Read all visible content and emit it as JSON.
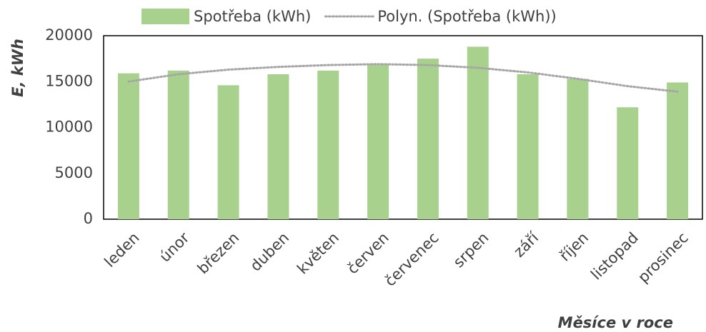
{
  "chart_data": {
    "type": "bar",
    "ylabel": "E, kWh",
    "xlabel": "Měsíce v roce",
    "categories": [
      "leden",
      "únor",
      "březen",
      "duben",
      "květen",
      "červen",
      "červenec",
      "srpen",
      "září",
      "říjen",
      "listopad",
      "prosinec"
    ],
    "series": [
      {
        "name": "Spotřeba (kWh)",
        "type": "bar",
        "color": "#a9d18e",
        "values": [
          15900,
          16200,
          14600,
          15800,
          16200,
          16800,
          17500,
          18800,
          15800,
          15300,
          12200,
          14900
        ]
      },
      {
        "name": "Polyn. (Spotřeba (kWh))",
        "type": "line",
        "color": "#a6a6a6",
        "values": [
          15000,
          15800,
          16300,
          16600,
          16800,
          16900,
          16800,
          16500,
          16000,
          15300,
          14500,
          13900
        ]
      }
    ],
    "ylim": [
      0,
      20000
    ],
    "yticks": [
      0,
      5000,
      10000,
      15000,
      20000
    ],
    "grid": false,
    "legend": "top"
  }
}
